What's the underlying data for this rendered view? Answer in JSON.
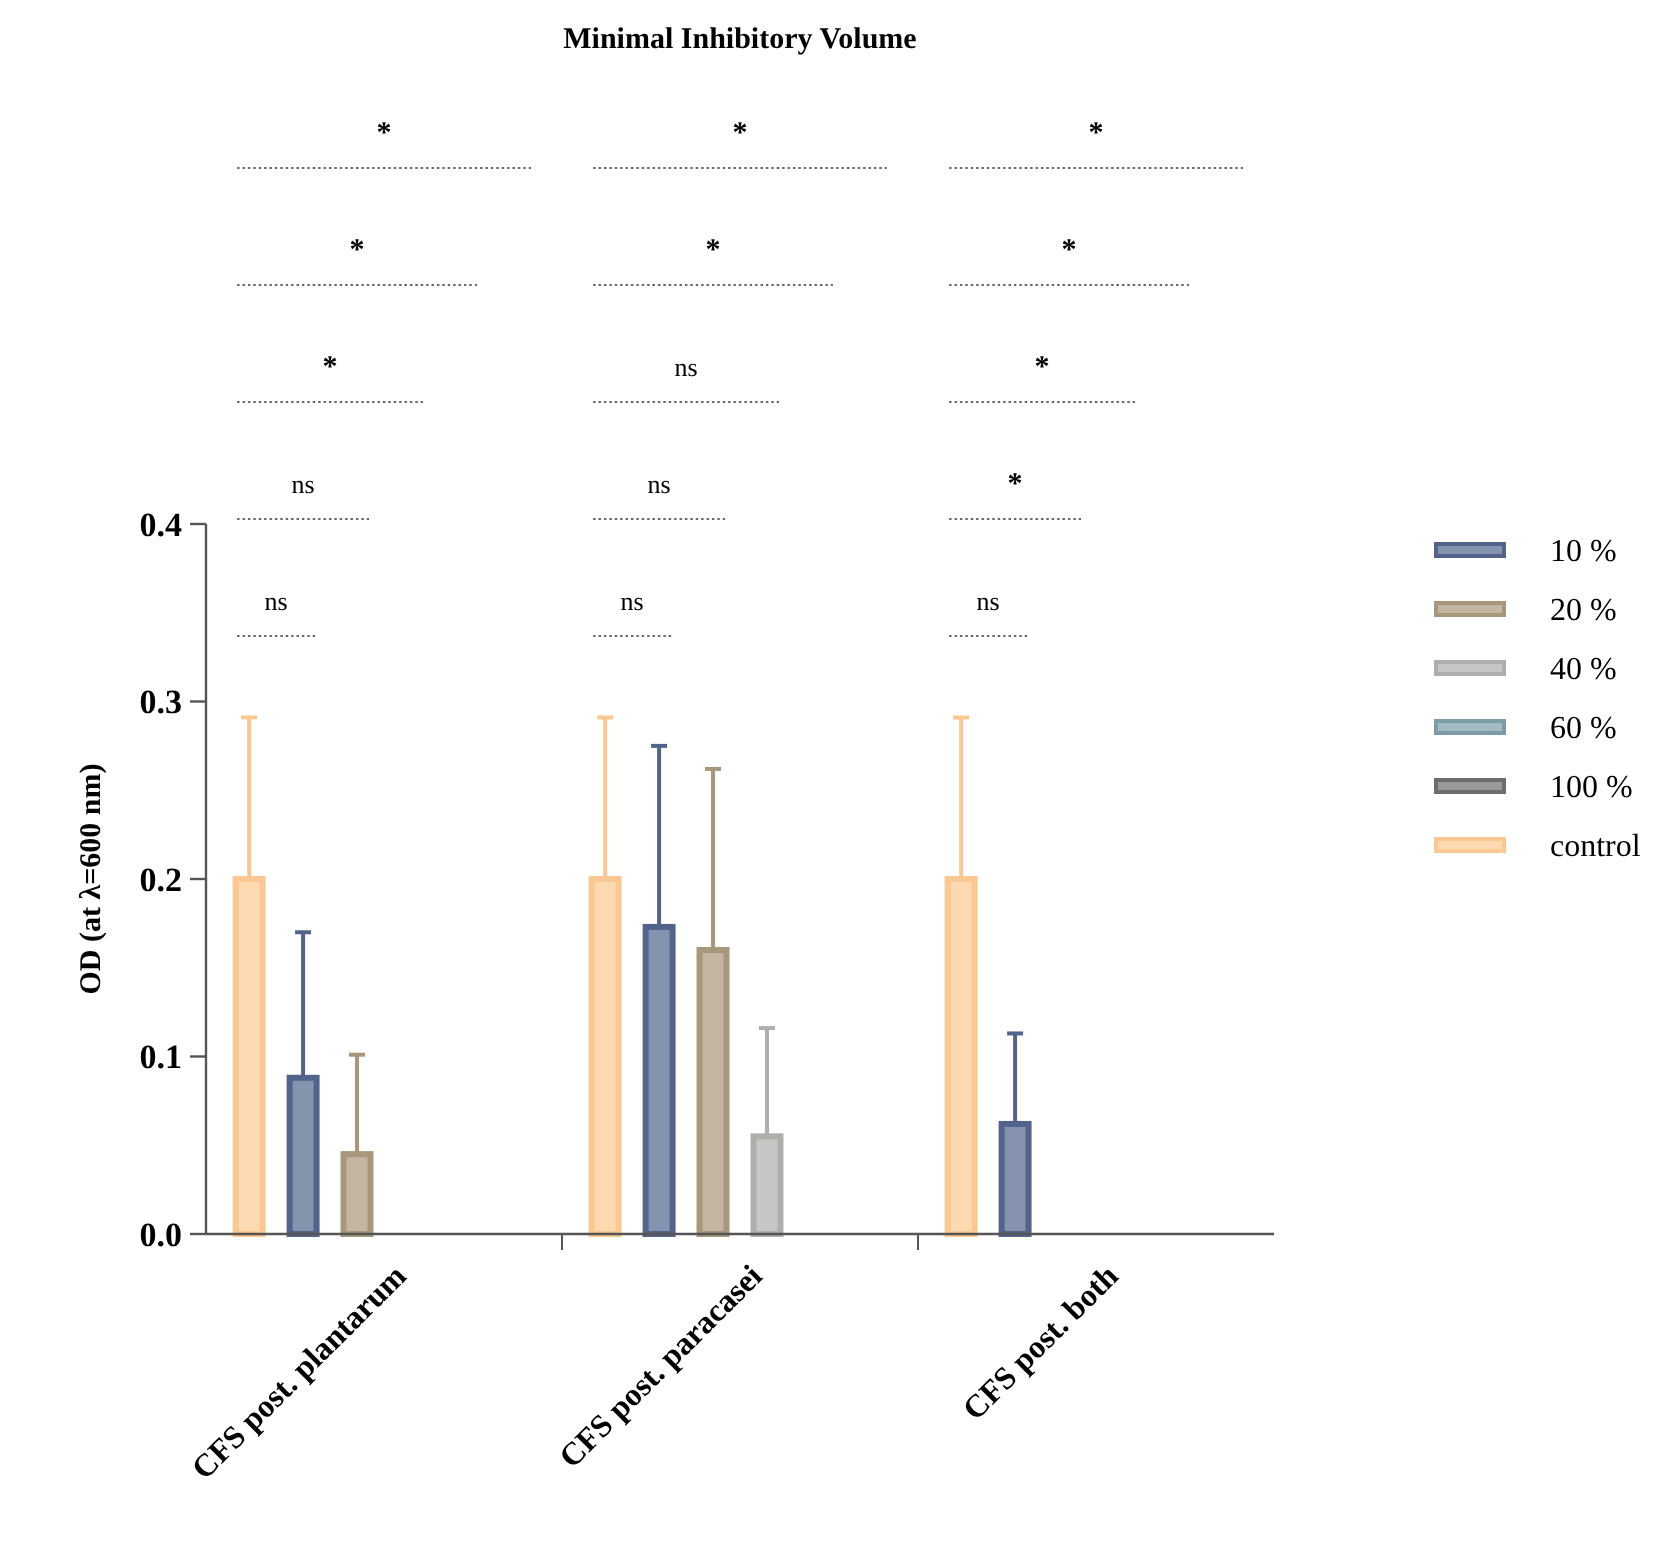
{
  "chart_data": {
    "type": "bar",
    "title": "Minimal Inhibitory Volume",
    "ylabel": "OD (at λ=600 nm)",
    "categories": [
      "CFS post. plantarum",
      "CFS post. paracasei",
      "CFS post. both"
    ],
    "series": [
      {
        "name": "10 %",
        "color": "#52648c",
        "values": [
          0.088,
          0.173,
          0.062
        ],
        "errors": [
          [
            0.088,
            0.17
          ],
          [
            0.173,
            0.275
          ],
          [
            0.062,
            0.113
          ]
        ]
      },
      {
        "name": "20 %",
        "color": "#a8977a",
        "values": [
          0.045,
          0.16,
          0
        ],
        "errors": [
          [
            0.045,
            0.101
          ],
          [
            0.16,
            0.262
          ],
          null
        ]
      },
      {
        "name": "40 %",
        "color": "#aeaeaa",
        "values": [
          0,
          0.055,
          0
        ],
        "errors": [
          null,
          [
            0.055,
            0.116
          ],
          null
        ]
      },
      {
        "name": "60 %",
        "color": "#7c9ca8",
        "values": [
          0,
          0,
          0
        ],
        "errors": [
          null,
          null,
          null
        ]
      },
      {
        "name": "100 %",
        "color": "#6e6e6e",
        "values": [
          0,
          0,
          0
        ],
        "errors": [
          null,
          null,
          null
        ]
      },
      {
        "name": "control",
        "color": "#fcc891",
        "values": [
          0.2,
          0.2,
          0.2
        ],
        "errors": [
          [
            0.2,
            0.291
          ],
          [
            0.2,
            0.291
          ],
          [
            0.2,
            0.291
          ]
        ]
      }
    ],
    "ylim": [
      0,
      0.4
    ],
    "yticks": [
      {
        "value": 0,
        "label": "0.0"
      },
      0.1,
      0.2,
      0.3,
      0.4
    ],
    "grid": false,
    "legend": "right",
    "annotations": [
      "ns",
      "ns",
      "*",
      "*",
      "*",
      "ns",
      "ns",
      "ns",
      "*",
      "*",
      "ns",
      "*",
      "*",
      "*",
      "*"
    ]
  }
}
